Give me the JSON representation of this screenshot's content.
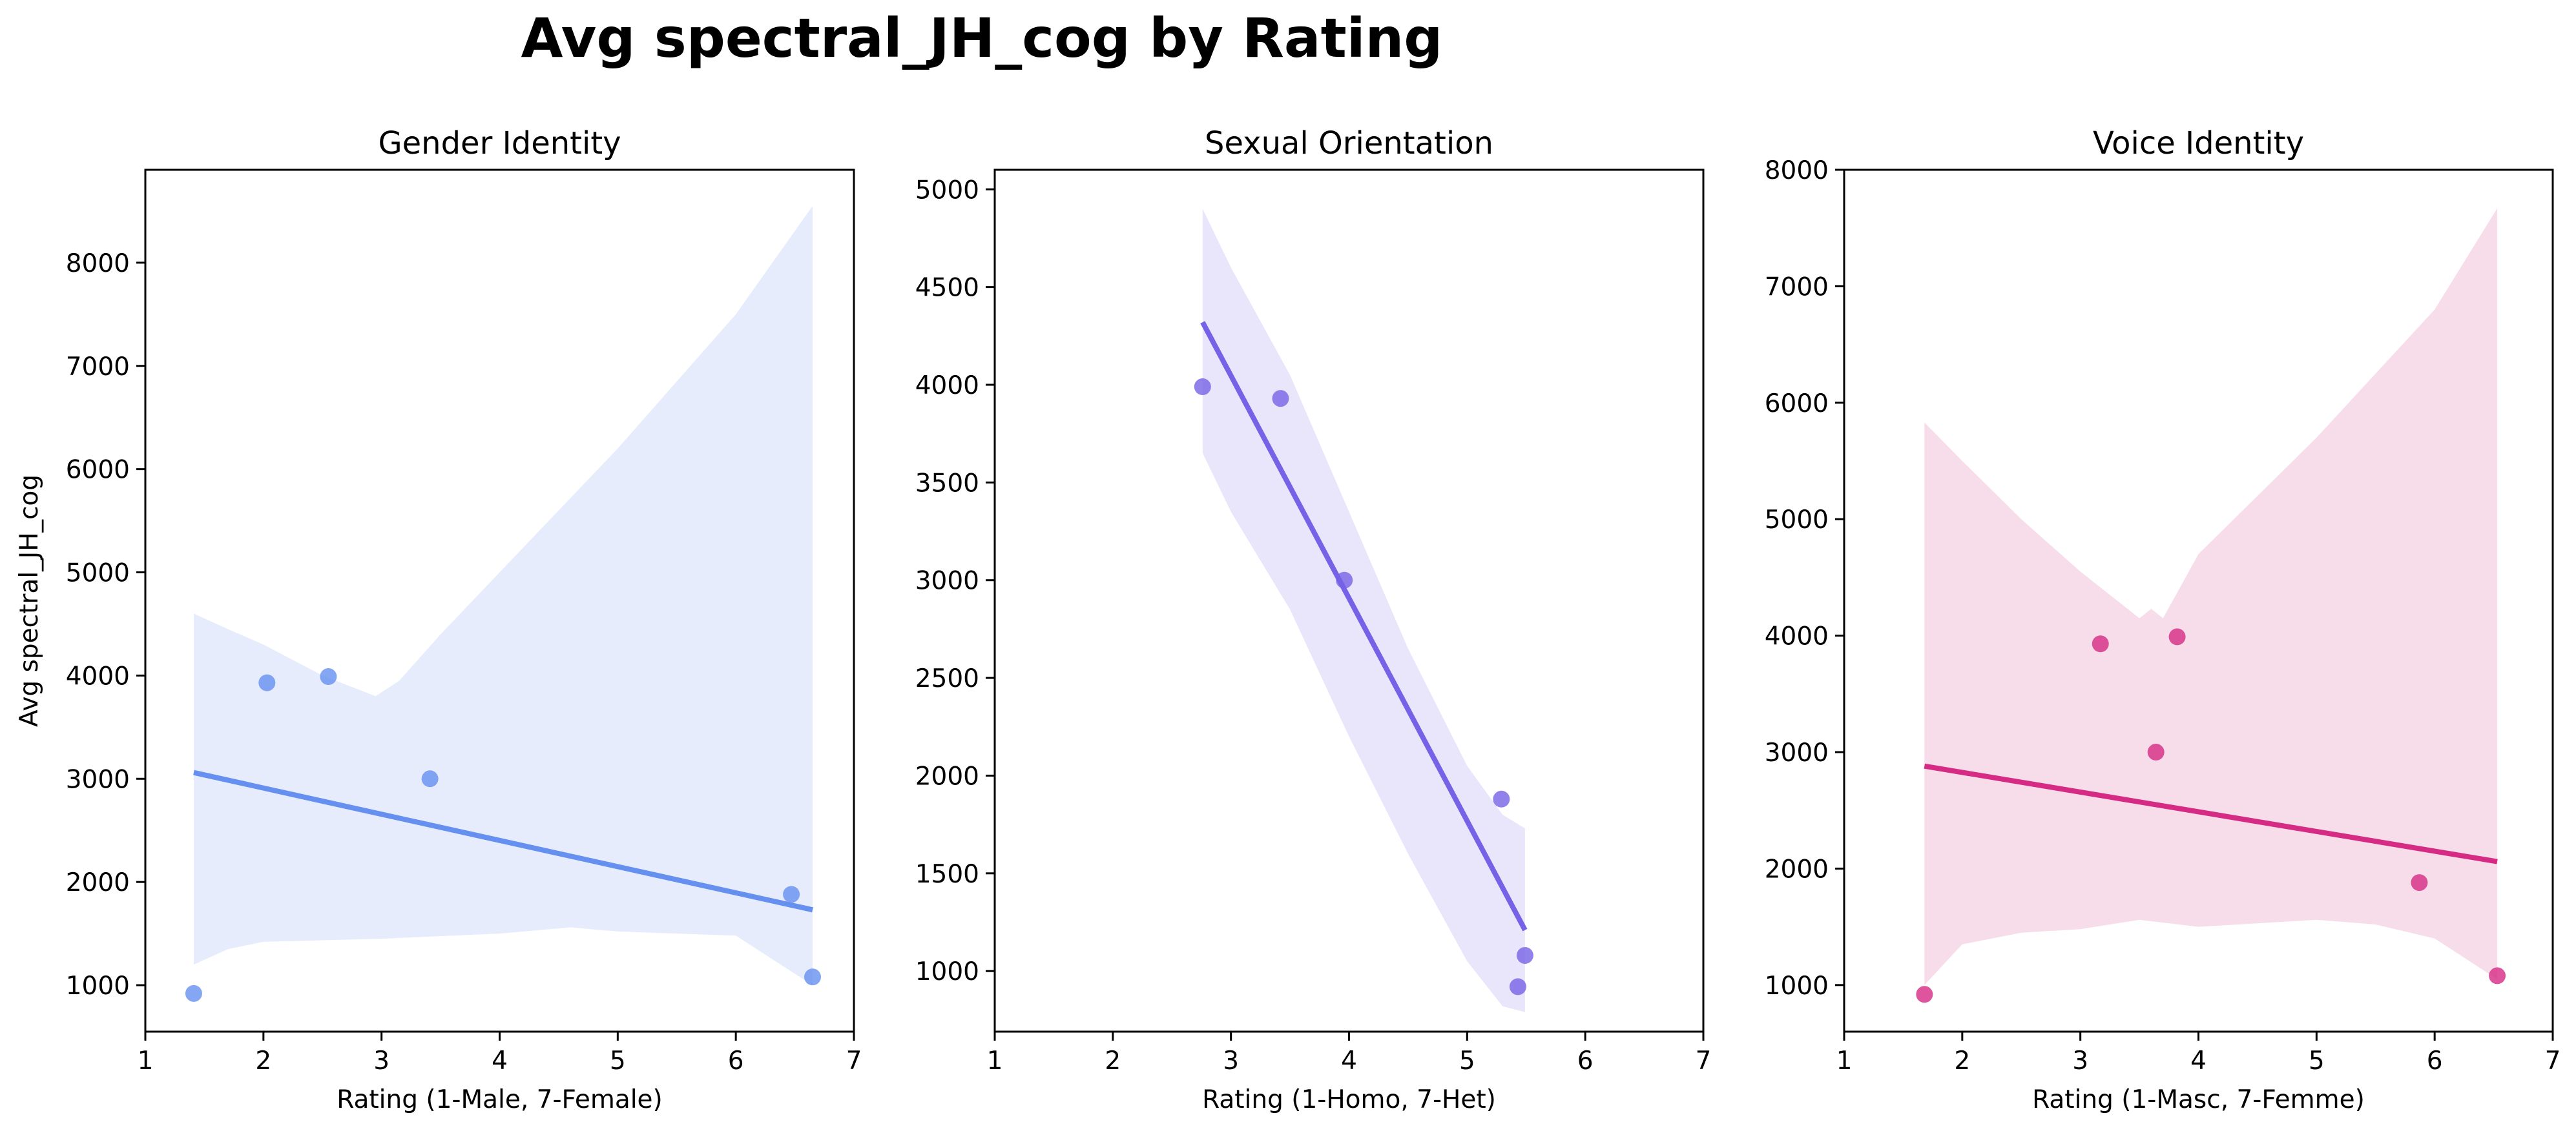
{
  "figure": {
    "title": "Avg spectral_JH_cog by Rating"
  },
  "chart_data": [
    {
      "type": "scatter",
      "title": "Gender Identity",
      "xlabel": "Rating (1-Male, 7-Female)",
      "ylabel": "Avg spectral_JH_cog",
      "xlim": [
        1,
        7
      ],
      "ylim": [
        550,
        8900
      ],
      "xticks": [
        1,
        2,
        3,
        4,
        5,
        6,
        7
      ],
      "yticks": [
        1000,
        2000,
        3000,
        4000,
        5000,
        6000,
        7000,
        8000
      ],
      "grid": false,
      "color": "#6590f0",
      "band_color": "#e6ecfc",
      "points": [
        {
          "x": 1.41,
          "y": 920
        },
        {
          "x": 2.03,
          "y": 3930
        },
        {
          "x": 2.55,
          "y": 3990
        },
        {
          "x": 3.41,
          "y": 3000
        },
        {
          "x": 6.47,
          "y": 1880
        },
        {
          "x": 6.65,
          "y": 1080
        }
      ],
      "fit": {
        "x": [
          1.41,
          6.65
        ],
        "y": [
          3060,
          1730
        ]
      },
      "band": {
        "upper": [
          [
            1.41,
            4600
          ],
          [
            1.7,
            4450
          ],
          [
            2.0,
            4300
          ],
          [
            2.5,
            4000
          ],
          [
            2.95,
            3800
          ],
          [
            3.15,
            3950
          ],
          [
            3.5,
            4400
          ],
          [
            4.0,
            5000
          ],
          [
            5.0,
            6200
          ],
          [
            6.0,
            7500
          ],
          [
            6.65,
            8550
          ]
        ],
        "lower": [
          [
            1.41,
            1200
          ],
          [
            1.7,
            1350
          ],
          [
            2.0,
            1420
          ],
          [
            3.0,
            1450
          ],
          [
            4.0,
            1500
          ],
          [
            4.6,
            1560
          ],
          [
            5.0,
            1520
          ],
          [
            6.0,
            1480
          ],
          [
            6.65,
            1000
          ]
        ]
      }
    },
    {
      "type": "scatter",
      "title": "Sexual Orientation",
      "xlabel": "Rating (1-Homo, 7-Het)",
      "ylabel": "",
      "xlim": [
        1,
        7
      ],
      "ylim": [
        690,
        5100
      ],
      "xticks": [
        1,
        2,
        3,
        4,
        5,
        6,
        7
      ],
      "yticks": [
        1000,
        1500,
        2000,
        2500,
        3000,
        3500,
        4000,
        4500,
        5000
      ],
      "grid": false,
      "color": "#7562e6",
      "band_color": "#e9e5fb",
      "points": [
        {
          "x": 2.76,
          "y": 3990
        },
        {
          "x": 3.42,
          "y": 3930
        },
        {
          "x": 3.96,
          "y": 3000
        },
        {
          "x": 5.29,
          "y": 1880
        },
        {
          "x": 5.43,
          "y": 920
        },
        {
          "x": 5.49,
          "y": 1080
        }
      ],
      "fit": {
        "x": [
          2.76,
          5.49
        ],
        "y": [
          4320,
          1210
        ]
      },
      "band": {
        "upper": [
          [
            2.76,
            4900
          ],
          [
            3.0,
            4600
          ],
          [
            3.5,
            4050
          ],
          [
            4.0,
            3350
          ],
          [
            4.5,
            2650
          ],
          [
            5.0,
            2050
          ],
          [
            5.3,
            1800
          ],
          [
            5.49,
            1730
          ]
        ],
        "lower": [
          [
            2.76,
            3650
          ],
          [
            3.0,
            3350
          ],
          [
            3.5,
            2850
          ],
          [
            4.0,
            2200
          ],
          [
            4.5,
            1600
          ],
          [
            5.0,
            1050
          ],
          [
            5.3,
            820
          ],
          [
            5.49,
            790
          ]
        ]
      }
    },
    {
      "type": "scatter",
      "title": "Voice Identity",
      "xlabel": "Rating (1-Masc, 7-Femme)",
      "ylabel": "",
      "xlim": [
        1,
        7
      ],
      "ylim": [
        600,
        8000
      ],
      "xticks": [
        1,
        2,
        3,
        4,
        5,
        6,
        7
      ],
      "yticks": [
        1000,
        2000,
        3000,
        4000,
        5000,
        6000,
        7000,
        8000
      ],
      "grid": false,
      "color": "#d62b84",
      "band_color": "#f7dcea",
      "points": [
        {
          "x": 1.68,
          "y": 920
        },
        {
          "x": 3.17,
          "y": 3930
        },
        {
          "x": 3.82,
          "y": 3990
        },
        {
          "x": 3.64,
          "y": 3000
        },
        {
          "x": 5.87,
          "y": 1880
        },
        {
          "x": 6.53,
          "y": 1080
        }
      ],
      "fit": {
        "x": [
          1.68,
          6.53
        ],
        "y": [
          2880,
          2060
        ]
      },
      "band": {
        "upper": [
          [
            1.68,
            5830
          ],
          [
            2.0,
            5500
          ],
          [
            2.5,
            5000
          ],
          [
            3.0,
            4550
          ],
          [
            3.5,
            4150
          ],
          [
            3.6,
            4230
          ],
          [
            3.7,
            4150
          ],
          [
            4.0,
            4700
          ],
          [
            5.0,
            5700
          ],
          [
            6.0,
            6800
          ],
          [
            6.53,
            7670
          ]
        ],
        "lower": [
          [
            1.68,
            1000
          ],
          [
            2.0,
            1350
          ],
          [
            2.5,
            1450
          ],
          [
            3.0,
            1480
          ],
          [
            3.5,
            1560
          ],
          [
            4.0,
            1500
          ],
          [
            5.0,
            1560
          ],
          [
            5.5,
            1520
          ],
          [
            6.0,
            1400
          ],
          [
            6.53,
            1050
          ]
        ]
      }
    }
  ]
}
